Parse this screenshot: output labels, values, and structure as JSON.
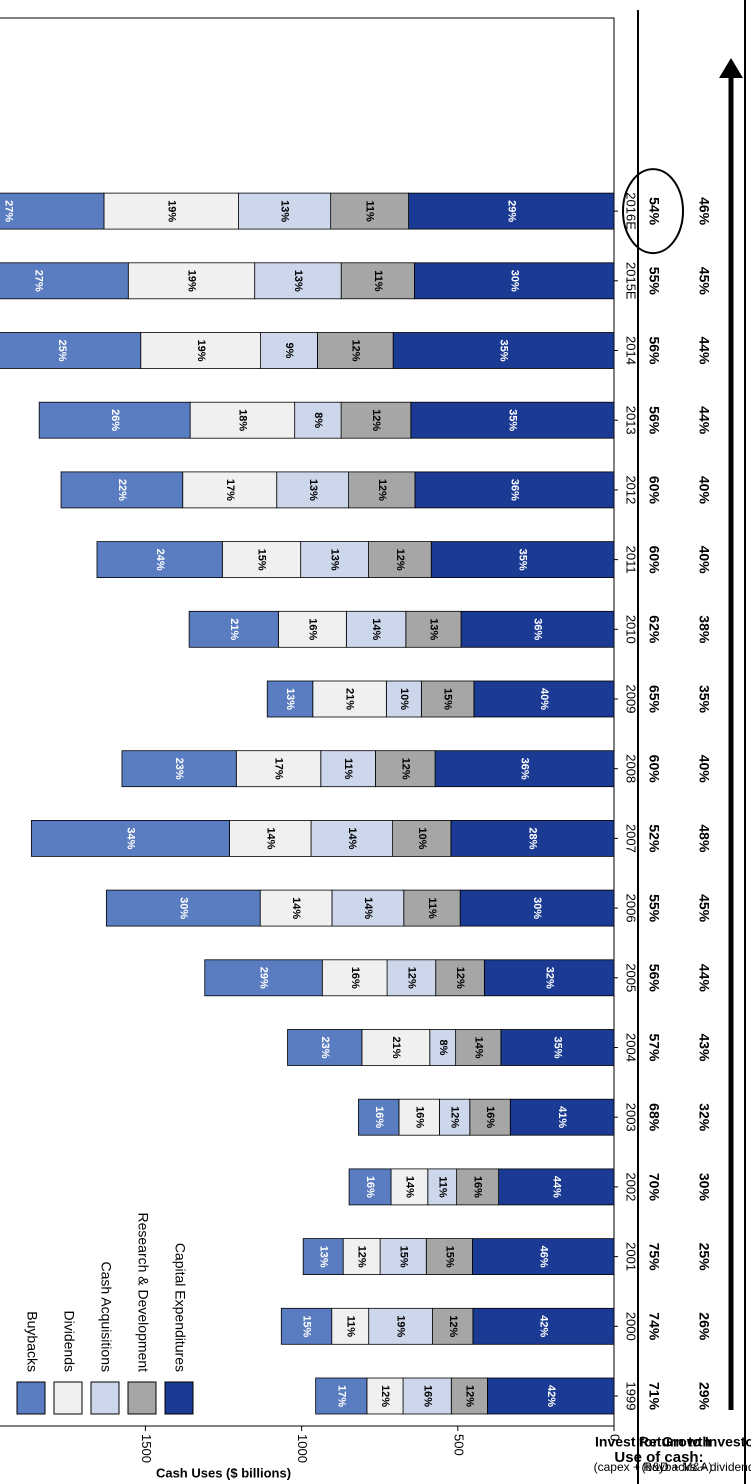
{
  "chart_data": {
    "type": "bar",
    "stacked": true,
    "orientation": "horizontal",
    "ylabel": "Cash Uses ($ billions)",
    "value_axis": {
      "min": 0,
      "max": 2500,
      "ticks": [
        0,
        500,
        1000,
        1500,
        2000,
        2500
      ]
    },
    "categories": [
      "1999",
      "2000",
      "2001",
      "2002",
      "2003",
      "2004",
      "2005",
      "2006",
      "2007",
      "2008",
      "2009",
      "2010",
      "2011",
      "2012",
      "2013",
      "2014",
      "2015E",
      "2016E"
    ],
    "totals": [
      955,
      1065,
      995,
      848,
      818,
      1045,
      1310,
      1625,
      1865,
      1575,
      1110,
      1360,
      1655,
      1770,
      1840,
      2020,
      2130,
      2245
    ],
    "series": [
      {
        "name": "Capital Expenditures",
        "color": "#1a3a94",
        "text_color": "#ffffff",
        "percents": [
          "42%",
          "42%",
          "46%",
          "44%",
          "41%",
          "35%",
          "32%",
          "30%",
          "28%",
          "36%",
          "40%",
          "36%",
          "35%",
          "36%",
          "35%",
          "35%",
          "30%",
          "29%"
        ]
      },
      {
        "name": "Research & Development",
        "color": "#a6a6a6",
        "text_color": "#000000",
        "percents": [
          "12%",
          "12%",
          "15%",
          "16%",
          "16%",
          "14%",
          "12%",
          "11%",
          "10%",
          "12%",
          "15%",
          "13%",
          "12%",
          "12%",
          "12%",
          "12%",
          "11%",
          "11%"
        ]
      },
      {
        "name": "Cash Acquisitions",
        "color": "#cdd7ec",
        "text_color": "#000000",
        "percents": [
          "16%",
          "19%",
          "15%",
          "11%",
          "12%",
          "8%",
          "12%",
          "14%",
          "14%",
          "11%",
          "10%",
          "14%",
          "13%",
          "13%",
          "8%",
          "9%",
          "13%",
          "13%"
        ]
      },
      {
        "name": "Dividends",
        "color": "#f0f0f0",
        "text_color": "#000000",
        "percents": [
          "12%",
          "11%",
          "12%",
          "14%",
          "16%",
          "21%",
          "16%",
          "14%",
          "14%",
          "17%",
          "21%",
          "16%",
          "15%",
          "17%",
          "18%",
          "19%",
          "19%",
          "19%"
        ]
      },
      {
        "name": "Buybacks",
        "color": "#5a7cc0",
        "text_color": "#ffffff",
        "percents": [
          "17%",
          "15%",
          "13%",
          "16%",
          "16%",
          "23%",
          "29%",
          "30%",
          "34%",
          "23%",
          "13%",
          "21%",
          "24%",
          "22%",
          "26%",
          "25%",
          "27%",
          "27%"
        ]
      }
    ],
    "legend": [
      "Buybacks",
      "Dividends",
      "Cash Acquisitions",
      "Research & Development",
      "Capital Expenditures"
    ],
    "table": {
      "title": "Use of cash:",
      "rows": [
        {
          "label": "Invest for Growth",
          "sublabel": "(capex + R&D + M&A)",
          "values": [
            "71%",
            "74%",
            "75%",
            "70%",
            "68%",
            "57%",
            "56%",
            "55%",
            "52%",
            "60%",
            "65%",
            "62%",
            "60%",
            "60%",
            "56%",
            "56%",
            "55%",
            "54%"
          ]
        },
        {
          "label": "Return to Investors",
          "sublabel": "(buybacks + dividends)",
          "values": [
            "29%",
            "26%",
            "25%",
            "30%",
            "32%",
            "43%",
            "44%",
            "45%",
            "48%",
            "40%",
            "35%",
            "38%",
            "40%",
            "40%",
            "44%",
            "44%",
            "45%",
            "46%"
          ]
        }
      ]
    }
  }
}
